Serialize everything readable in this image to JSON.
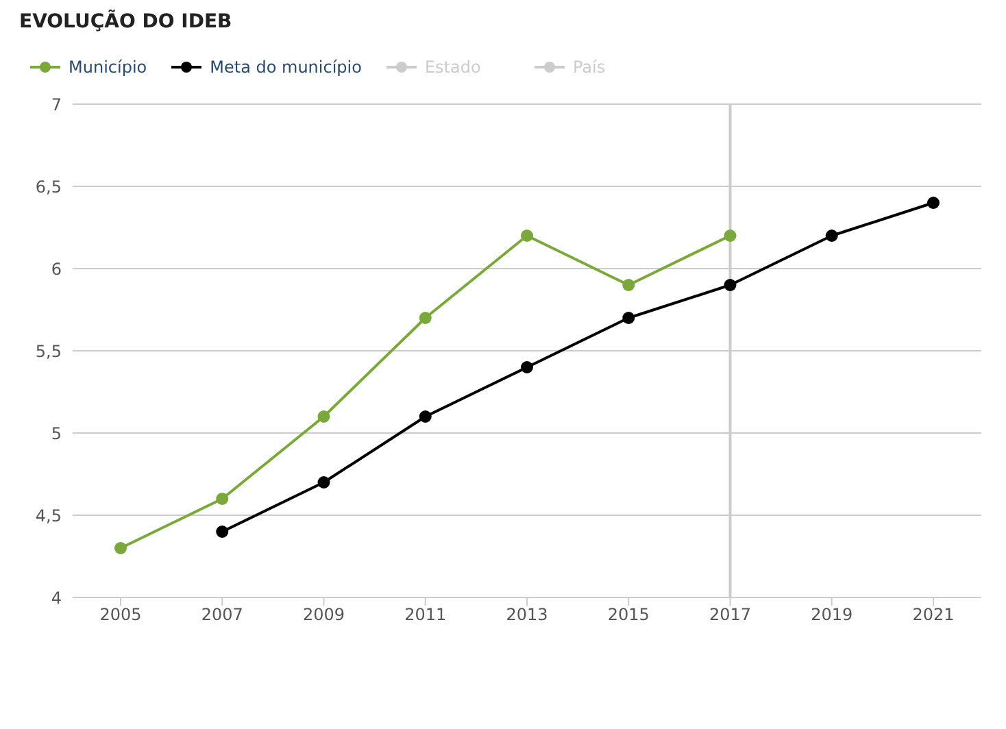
{
  "chart_data": {
    "type": "line",
    "title": "EVOLUÇÃO DO IDEB",
    "categories": [
      "2005",
      "2007",
      "2009",
      "2011",
      "2013",
      "2015",
      "2017",
      "2019",
      "2021"
    ],
    "series": [
      {
        "name": "Município",
        "color": "#7aa83a",
        "values": [
          4.3,
          4.6,
          5.1,
          5.7,
          6.2,
          5.9,
          6.2,
          null,
          null
        ]
      },
      {
        "name": "Meta do município",
        "color": "#000000",
        "values": [
          null,
          4.4,
          4.7,
          5.1,
          5.4,
          5.7,
          5.9,
          6.2,
          6.4
        ]
      },
      {
        "name": "Estado",
        "color": "#cccccc",
        "values": [
          null,
          null,
          null,
          null,
          null,
          null,
          null,
          null,
          null
        ]
      },
      {
        "name": "País",
        "color": "#cccccc",
        "values": [
          null,
          null,
          null,
          null,
          null,
          null,
          null,
          null,
          null
        ]
      }
    ],
    "ylim": [
      4,
      7
    ],
    "yticks": [
      4,
      {
        "value": 4.5,
        "label": "4,5"
      },
      5,
      {
        "value": 5.5,
        "label": "5,5"
      },
      6,
      {
        "value": 6.5,
        "label": "6,5"
      },
      7
    ],
    "grid": "y",
    "legend": "top left",
    "marker": "circle",
    "line_style": "solid",
    "ref_lines": [
      {
        "axis": "x",
        "value": "2017",
        "color": "#cccccc"
      }
    ]
  }
}
